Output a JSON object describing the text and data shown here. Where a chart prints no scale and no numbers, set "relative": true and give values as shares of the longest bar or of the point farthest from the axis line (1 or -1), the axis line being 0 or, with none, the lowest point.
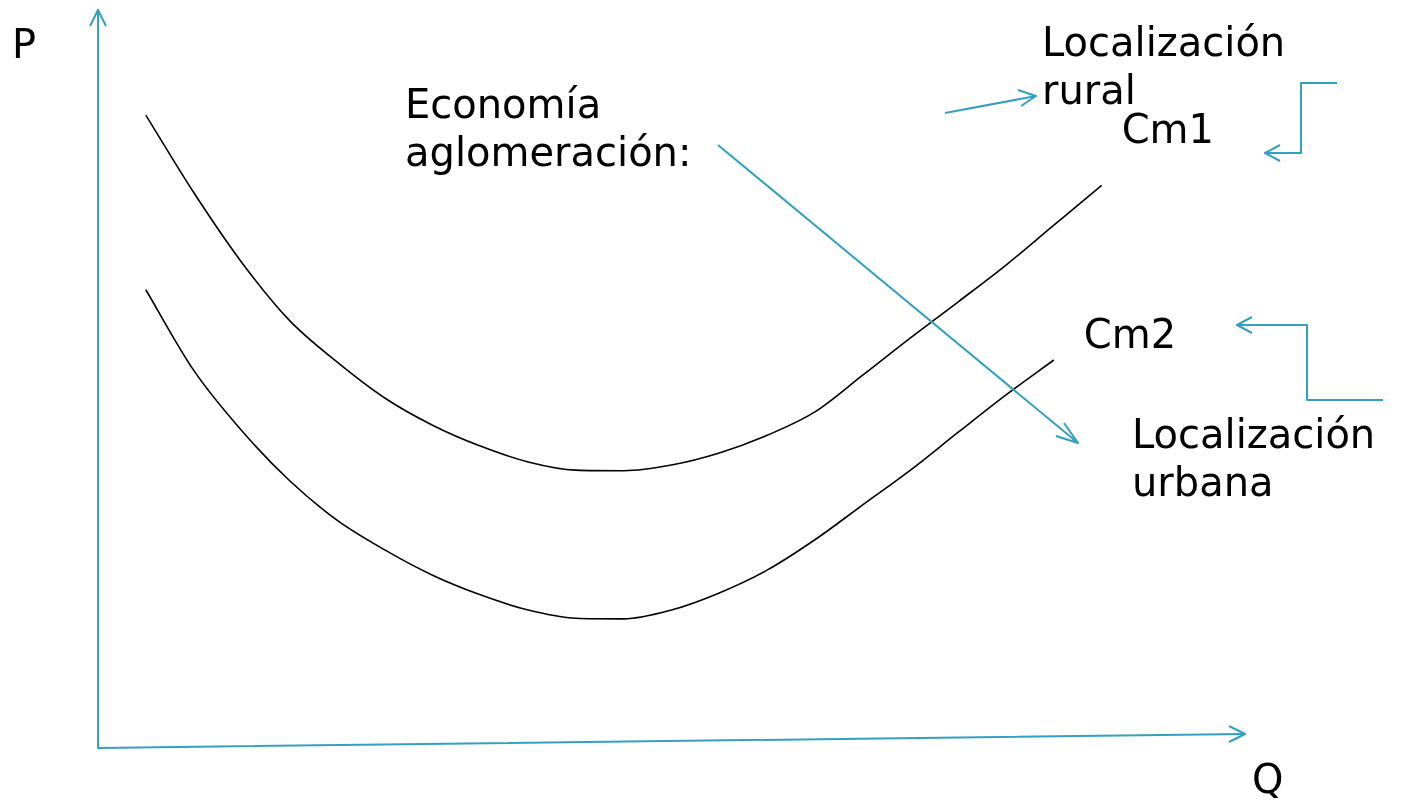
{
  "chart_data": {
    "type": "line",
    "relative": true,
    "xlabel": "Q",
    "ylabel": "P",
    "categories": [
      null,
      null,
      null,
      null,
      null,
      null,
      null,
      null,
      null,
      null,
      null,
      null,
      null,
      null,
      null,
      null,
      null,
      null,
      null,
      null,
      null,
      null,
      null,
      null,
      null
    ],
    "series": [
      {
        "name": "Cm1",
        "color": "#000000",
        "values": [
          null,
          1,
          0.878,
          0.768,
          0.676,
          0.61,
          0.553,
          0.51,
          0.477,
          0.452,
          0.439,
          0.438,
          0.447,
          0.466,
          0.494,
          0.531,
          0.589,
          0.648,
          0.705,
          0.763,
          0.826,
          0.889,
          null,
          null,
          null
        ]
      },
      {
        "name": "Cm2",
        "color": "#000000",
        "values": [
          null,
          0.724,
          0.597,
          0.502,
          0.423,
          0.36,
          0.313,
          0.273,
          0.242,
          0.218,
          0.205,
          0.204,
          0.218,
          0.245,
          0.281,
          0.329,
          0.384,
          0.439,
          0.499,
          0.558,
          0.613,
          null,
          null,
          null,
          null
        ]
      }
    ],
    "annotations": [
      "Economía aglomeración:",
      "Localización rural",
      "Localización urbana"
    ],
    "legend": false,
    "marker": "none",
    "line_style": "solid"
  }
}
